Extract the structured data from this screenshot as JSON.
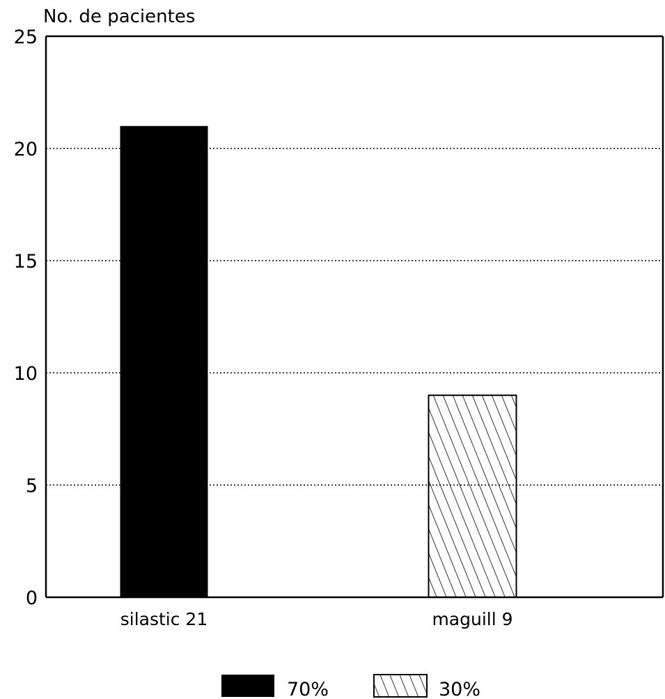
{
  "chart_data": {
    "type": "bar",
    "ylabel": "No. de pacientes",
    "xlabel": "",
    "ylim": [
      0,
      25
    ],
    "yticks": [
      0,
      5,
      10,
      15,
      20,
      25
    ],
    "grid": true,
    "categories": [
      "silastic 21",
      "maguill 9"
    ],
    "values": [
      21,
      9
    ],
    "bars": [
      {
        "category": "silastic 21",
        "value": 21,
        "pattern": "solid-black"
      },
      {
        "category": "maguill 9",
        "value": 9,
        "pattern": "diagonal-hatch"
      }
    ],
    "legend": {
      "placement": "bottom-center",
      "entries": [
        {
          "label": "70%",
          "pattern": "solid-black"
        },
        {
          "label": "30%",
          "pattern": "diagonal-hatch"
        }
      ]
    },
    "colors": {
      "ink": "#000000",
      "background": "#ffffff"
    }
  }
}
